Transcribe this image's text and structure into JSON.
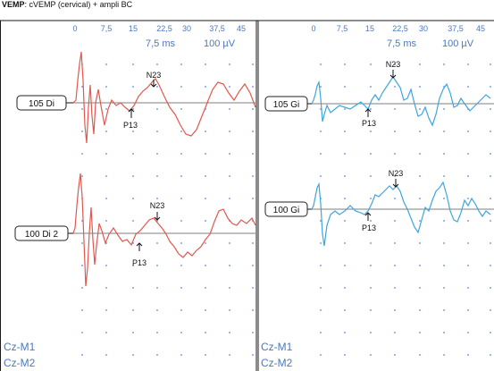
{
  "header": {
    "title_bold": "VEMP",
    "title_rest": ": cVEMP (cervical) + ampli BC"
  },
  "colors": {
    "left_trace": "#e0584f",
    "right_trace": "#3ea6dc",
    "grid_dots": "#5a8ad6",
    "axis_text": "#4a78c2",
    "frame": "#1a1a1a",
    "baseline": "#555555"
  },
  "panels": [
    {
      "side": "left",
      "time_ticks": [
        "0",
        "7,5",
        "15",
        "22,5",
        "30",
        "37,5",
        "45"
      ],
      "time_scale": "7,5 ms",
      "amp_scale": "100 µV",
      "references": [
        "Cz-M1",
        "Cz-M2"
      ],
      "channels": [
        {
          "label": "105 Di",
          "peaks": [
            "N23",
            "P13"
          ]
        },
        {
          "label": "100 Di 2",
          "peaks": [
            "N23",
            "P13"
          ]
        }
      ]
    },
    {
      "side": "right",
      "time_ticks": [
        "0",
        "7,5",
        "15",
        "22,5",
        "30",
        "37,5",
        "45"
      ],
      "time_scale": "7,5 ms",
      "amp_scale": "100 µV",
      "references": [
        "Cz-M1",
        "Cz-M2"
      ],
      "channels": [
        {
          "label": "105 Gi",
          "peaks": [
            "N23",
            "P13"
          ]
        },
        {
          "label": "100 Gi",
          "peaks": [
            "N23",
            "P13"
          ]
        }
      ]
    }
  ]
}
